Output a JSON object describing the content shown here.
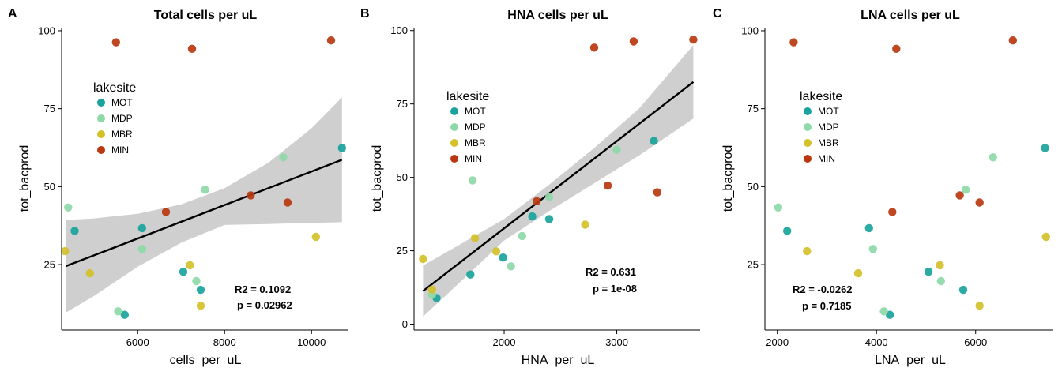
{
  "colors": {
    "MOT": "#1aa39c",
    "MDP": "#8ed9a8",
    "MBR": "#d4c12a",
    "MIN": "#b9380f",
    "band": "#cfcfcf",
    "line": "#000000"
  },
  "chart_data": [
    {
      "panel": "A",
      "type": "scatter",
      "title": "Total cells per uL",
      "xlabel": "cells_per_uL",
      "ylabel": "tot_bacprod",
      "xlim": [
        4250,
        10850
      ],
      "ylim": [
        4,
        101
      ],
      "xticks": [
        6000,
        8000,
        10000
      ],
      "yticks": [
        25,
        50,
        75,
        100
      ],
      "grid": false,
      "legend": {
        "title": "lakesite",
        "entries": [
          "MOT",
          "MDP",
          "MBR",
          "MIN"
        ],
        "placement": "upper-left"
      },
      "annotations": [
        "R2 = 0.1092",
        "p = 0.02962"
      ],
      "fit": {
        "type": "linear",
        "x": [
          4350,
          10700
        ],
        "y": [
          24.5,
          58.6
        ],
        "band_x": [
          4350,
          5000,
          6000,
          7000,
          8000,
          9000,
          10000,
          10700
        ],
        "band_upper": [
          39.3,
          39.8,
          41.3,
          44.3,
          49.5,
          57.6,
          68.7,
          78.6
        ],
        "band_lower": [
          9.6,
          15.0,
          24.3,
          32.0,
          37.7,
          38.0,
          38.4,
          38.6
        ]
      },
      "series": [
        {
          "name": "MOT",
          "points": [
            [
              4550,
              35.8
            ],
            [
              5700,
              8.9
            ],
            [
              6100,
              36.7
            ],
            [
              7050,
              22.7
            ],
            [
              7450,
              16.9
            ],
            [
              10700,
              62.4
            ]
          ]
        },
        {
          "name": "MDP",
          "points": [
            [
              4400,
              43.3
            ],
            [
              5550,
              10.0
            ],
            [
              6100,
              30.0
            ],
            [
              7350,
              19.7
            ],
            [
              7550,
              49.0
            ],
            [
              9350,
              59.4
            ]
          ]
        },
        {
          "name": "MBR",
          "points": [
            [
              4330,
              29.3
            ],
            [
              4900,
              22.2
            ],
            [
              7200,
              24.8
            ],
            [
              7450,
              11.8
            ],
            [
              10100,
              33.9
            ]
          ]
        },
        {
          "name": "MIN",
          "points": [
            [
              5500,
              96.3
            ],
            [
              6650,
              41.9
            ],
            [
              7250,
              94.2
            ],
            [
              8600,
              47.2
            ],
            [
              9450,
              44.9
            ],
            [
              10450,
              96.9
            ]
          ]
        }
      ]
    },
    {
      "panel": "B",
      "type": "scatter",
      "title": "HNA cells per uL",
      "xlabel": "HNA_per_uL",
      "ylabel": "tot_bacprod",
      "xlim": [
        1200,
        3740
      ],
      "ylim": [
        -2,
        101
      ],
      "xticks": [
        2000,
        3000
      ],
      "yticks": [
        0,
        25,
        50,
        75,
        100
      ],
      "grid": false,
      "legend": {
        "title": "lakesite",
        "entries": [
          "MOT",
          "MDP",
          "MBR",
          "MIN"
        ],
        "placement": "upper-left"
      },
      "annotations": [
        "R2 = 0.631",
        "p = 1e-08"
      ],
      "fit": {
        "type": "linear",
        "x": [
          1280,
          3680
        ],
        "y": [
          11.3,
          82.5
        ],
        "band_x": [
          1280,
          1600,
          2000,
          2400,
          2800,
          3200,
          3680
        ],
        "band_upper": [
          20.0,
          27.0,
          35.8,
          47.5,
          60.0,
          73.5,
          95.0
        ],
        "band_lower": [
          2.6,
          14.0,
          28.5,
          38.5,
          48.0,
          57.5,
          70.0
        ]
      },
      "series": [
        {
          "name": "MOT",
          "points": [
            [
              1400,
              8.9
            ],
            [
              1700,
              16.9
            ],
            [
              1990,
              22.7
            ],
            [
              2250,
              36.7
            ],
            [
              2400,
              35.8
            ],
            [
              3330,
              62.4
            ]
          ]
        },
        {
          "name": "MDP",
          "points": [
            [
              1360,
              10.0
            ],
            [
              1720,
              49.0
            ],
            [
              2060,
              19.7
            ],
            [
              2160,
              30.0
            ],
            [
              2400,
              43.3
            ],
            [
              3000,
              59.4
            ]
          ]
        },
        {
          "name": "MBR",
          "points": [
            [
              1280,
              22.2
            ],
            [
              1360,
              11.8
            ],
            [
              1740,
              29.3
            ],
            [
              1930,
              24.8
            ],
            [
              2720,
              33.9
            ]
          ]
        },
        {
          "name": "MIN",
          "points": [
            [
              2290,
              41.9
            ],
            [
              2800,
              94.2
            ],
            [
              2920,
              47.2
            ],
            [
              3150,
              96.3
            ],
            [
              3360,
              44.9
            ],
            [
              3680,
              96.9
            ]
          ]
        }
      ]
    },
    {
      "panel": "C",
      "type": "scatter",
      "title": "LNA cells per uL",
      "xlabel": "LNA_per_uL",
      "ylabel": "tot_bacprod",
      "xlim": [
        1750,
        7550
      ],
      "ylim": [
        4,
        101
      ],
      "xticks": [
        2000,
        4000,
        6000
      ],
      "yticks": [
        25,
        50,
        75,
        100
      ],
      "grid": false,
      "legend": {
        "title": "lakesite",
        "entries": [
          "MOT",
          "MDP",
          "MBR",
          "MIN"
        ],
        "placement": "upper-left"
      },
      "annotations": [
        "R2 = -0.0262",
        "p = 0.7185"
      ],
      "series": [
        {
          "name": "MOT",
          "points": [
            [
              2200,
              35.8
            ],
            [
              3850,
              36.7
            ],
            [
              4270,
              8.9
            ],
            [
              5050,
              22.7
            ],
            [
              5750,
              16.9
            ],
            [
              7400,
              62.4
            ]
          ]
        },
        {
          "name": "MDP",
          "points": [
            [
              2020,
              43.3
            ],
            [
              3930,
              30.0
            ],
            [
              4150,
              10.0
            ],
            [
              5300,
              19.7
            ],
            [
              5800,
              49.0
            ],
            [
              6350,
              59.4
            ]
          ]
        },
        {
          "name": "MBR",
          "points": [
            [
              2600,
              29.3
            ],
            [
              3630,
              22.2
            ],
            [
              5280,
              24.8
            ],
            [
              6080,
              11.8
            ],
            [
              7420,
              33.9
            ]
          ]
        },
        {
          "name": "MIN",
          "points": [
            [
              2330,
              96.3
            ],
            [
              4320,
              41.9
            ],
            [
              4400,
              94.2
            ],
            [
              5680,
              47.2
            ],
            [
              6080,
              44.9
            ],
            [
              6750,
              96.9
            ]
          ]
        }
      ]
    }
  ]
}
